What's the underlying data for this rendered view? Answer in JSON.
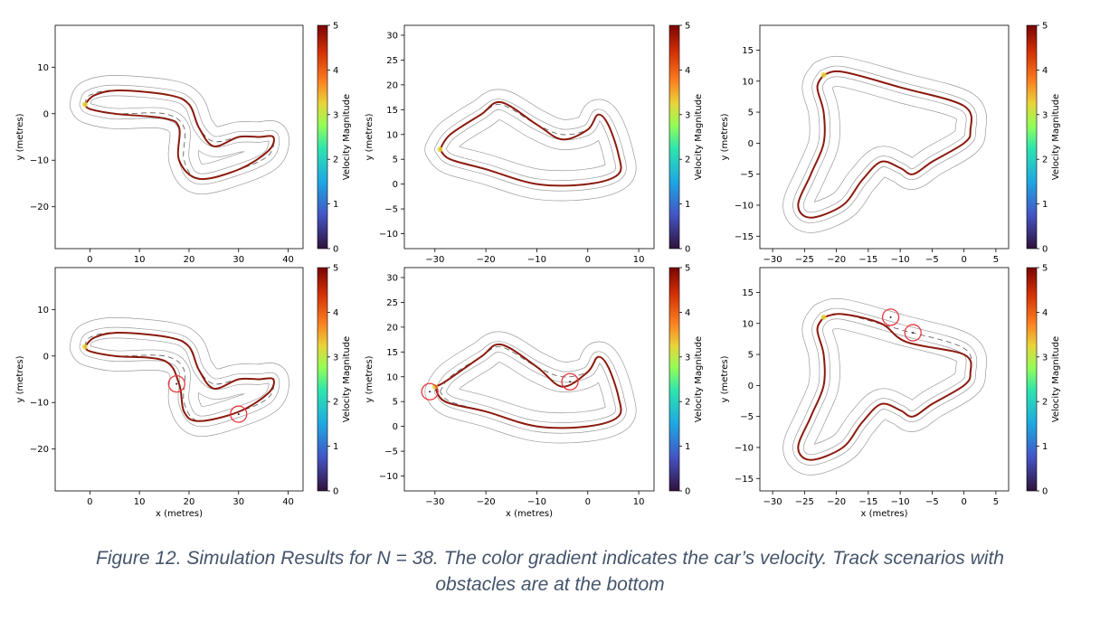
{
  "caption": {
    "line1": "Figure 12. Simulation Results for N = 38. The color gradient indicates the car’s velocity. Track scenarios with",
    "line2": "obstacles are at the bottom"
  },
  "colorbar": {
    "label": "Velocity Magnitude",
    "ticks": [
      0,
      1,
      2,
      3,
      4,
      5
    ]
  },
  "colors": {
    "trajectory": "#8b1a0e",
    "track_line": "#9a9a9a",
    "center_line": "#555555",
    "obstacle": "#e8383d",
    "caption": "#44546a"
  },
  "chart_data": [
    {
      "type": "line",
      "track": "track-1",
      "obstacles": false,
      "xlim": [
        -7,
        43
      ],
      "ylim": [
        -29,
        19
      ],
      "xticks": [
        0,
        10,
        20,
        30,
        40
      ],
      "yticks": [
        10,
        0,
        -10,
        -20
      ],
      "xlabel": "",
      "ylabel": "y (metres)",
      "centerline": [
        [
          -1,
          2
        ],
        [
          0,
          4
        ],
        [
          5,
          5
        ],
        [
          16,
          4
        ],
        [
          20,
          2
        ],
        [
          22,
          -3
        ],
        [
          25,
          -6
        ],
        [
          30,
          -5
        ],
        [
          34,
          -5
        ],
        [
          37,
          -5
        ],
        [
          36,
          -9
        ],
        [
          30,
          -12
        ],
        [
          22,
          -14
        ],
        [
          19,
          -10
        ],
        [
          19,
          -3
        ],
        [
          15,
          0
        ],
        [
          5,
          0
        ],
        [
          0,
          1
        ],
        [
          -1,
          2
        ]
      ],
      "trajectory": [
        [
          -1,
          2
        ],
        [
          1,
          4
        ],
        [
          6,
          5
        ],
        [
          16,
          4
        ],
        [
          20,
          2
        ],
        [
          22,
          -3
        ],
        [
          25,
          -7
        ],
        [
          30,
          -5
        ],
        [
          34,
          -5
        ],
        [
          37,
          -5
        ],
        [
          36,
          -8
        ],
        [
          30,
          -12
        ],
        [
          22,
          -14
        ],
        [
          18,
          -10
        ],
        [
          18,
          -3
        ],
        [
          15,
          -1
        ],
        [
          5,
          0
        ],
        [
          0,
          1
        ],
        [
          -1,
          2
        ]
      ],
      "obstacle_points": []
    },
    {
      "type": "line",
      "track": "track-2",
      "obstacles": false,
      "xlim": [
        -36,
        13
      ],
      "ylim": [
        -13,
        32
      ],
      "xticks": [
        -30,
        -20,
        -10,
        0,
        10
      ],
      "yticks": [
        30,
        25,
        20,
        15,
        10,
        5,
        0,
        -5,
        -10
      ],
      "xlabel": "",
      "ylabel": "y (metres)",
      "centerline": [
        [
          -29,
          7
        ],
        [
          -27,
          10
        ],
        [
          -21,
          14
        ],
        [
          -17,
          16
        ],
        [
          -10,
          12
        ],
        [
          -5,
          10
        ],
        [
          0,
          11
        ],
        [
          2,
          14
        ],
        [
          4,
          12
        ],
        [
          6,
          6
        ],
        [
          6,
          2
        ],
        [
          0,
          0
        ],
        [
          -10,
          0
        ],
        [
          -20,
          3
        ],
        [
          -27,
          5
        ],
        [
          -29,
          7
        ]
      ],
      "trajectory": [
        [
          -29,
          7
        ],
        [
          -27,
          10
        ],
        [
          -21,
          14
        ],
        [
          -17,
          16.5
        ],
        [
          -10,
          12
        ],
        [
          -5,
          9
        ],
        [
          0,
          11
        ],
        [
          2,
          14
        ],
        [
          4,
          12
        ],
        [
          6,
          6
        ],
        [
          6,
          2
        ],
        [
          0,
          0
        ],
        [
          -10,
          0
        ],
        [
          -20,
          3
        ],
        [
          -27,
          5
        ],
        [
          -29,
          7
        ]
      ],
      "obstacle_points": []
    },
    {
      "type": "line",
      "track": "track-3",
      "obstacles": false,
      "xlim": [
        -32,
        7
      ],
      "ylim": [
        -17,
        19
      ],
      "xticks": [
        -30,
        -25,
        -20,
        -15,
        -10,
        -5,
        0,
        5
      ],
      "yticks": [
        15,
        10,
        5,
        0,
        -5,
        -10,
        -15
      ],
      "xlabel": "",
      "ylabel": "y (metres)",
      "centerline": [
        [
          -22,
          11
        ],
        [
          -19,
          11.5
        ],
        [
          -10,
          9
        ],
        [
          0,
          6
        ],
        [
          1,
          2
        ],
        [
          0,
          0
        ],
        [
          -5,
          -3
        ],
        [
          -8,
          -5
        ],
        [
          -10,
          -4
        ],
        [
          -13,
          -3
        ],
        [
          -16,
          -6
        ],
        [
          -19,
          -10
        ],
        [
          -24,
          -12
        ],
        [
          -26,
          -10
        ],
        [
          -24,
          -5
        ],
        [
          -22,
          0
        ],
        [
          -22,
          5
        ],
        [
          -23,
          9
        ],
        [
          -22,
          11
        ]
      ],
      "trajectory": [
        [
          -22,
          11
        ],
        [
          -19,
          11.5
        ],
        [
          -10,
          9
        ],
        [
          0,
          6
        ],
        [
          1,
          2
        ],
        [
          0,
          0
        ],
        [
          -5,
          -3
        ],
        [
          -8,
          -5
        ],
        [
          -10,
          -4
        ],
        [
          -13,
          -3
        ],
        [
          -16,
          -6
        ],
        [
          -19,
          -10
        ],
        [
          -24,
          -12
        ],
        [
          -26,
          -10
        ],
        [
          -24,
          -5
        ],
        [
          -22,
          0
        ],
        [
          -22,
          5
        ],
        [
          -23,
          9
        ],
        [
          -22,
          11
        ]
      ],
      "obstacle_points": []
    },
    {
      "type": "line",
      "track": "track-1",
      "obstacles": true,
      "xlim": [
        -7,
        43
      ],
      "ylim": [
        -29,
        19
      ],
      "xticks": [
        0,
        10,
        20,
        30,
        40
      ],
      "yticks": [
        10,
        0,
        -10,
        -20
      ],
      "xlabel": "x (metres)",
      "ylabel": "y (metres)",
      "centerline": [
        [
          -1,
          2
        ],
        [
          0,
          4
        ],
        [
          5,
          5
        ],
        [
          16,
          4
        ],
        [
          20,
          2
        ],
        [
          22,
          -3
        ],
        [
          25,
          -6
        ],
        [
          30,
          -5
        ],
        [
          34,
          -5
        ],
        [
          37,
          -5
        ],
        [
          36,
          -9
        ],
        [
          30,
          -12
        ],
        [
          22,
          -14
        ],
        [
          19,
          -10
        ],
        [
          19,
          -3
        ],
        [
          15,
          0
        ],
        [
          5,
          0
        ],
        [
          0,
          1
        ],
        [
          -1,
          2
        ]
      ],
      "trajectory": [
        [
          -1,
          2
        ],
        [
          1,
          4
        ],
        [
          6,
          5
        ],
        [
          16,
          4
        ],
        [
          20,
          2
        ],
        [
          22,
          -3
        ],
        [
          25,
          -7
        ],
        [
          30,
          -5
        ],
        [
          34,
          -5
        ],
        [
          37,
          -5
        ],
        [
          36,
          -8
        ],
        [
          30,
          -12
        ],
        [
          22,
          -14
        ],
        [
          19,
          -12
        ],
        [
          18,
          -6
        ],
        [
          15,
          -1
        ],
        [
          5,
          0
        ],
        [
          0,
          1
        ],
        [
          -1,
          2
        ]
      ],
      "obstacle_points": [
        [
          17.5,
          -6
        ],
        [
          30,
          -12.5
        ]
      ]
    },
    {
      "type": "line",
      "track": "track-2",
      "obstacles": true,
      "xlim": [
        -36,
        13
      ],
      "ylim": [
        -13,
        32
      ],
      "xticks": [
        -30,
        -20,
        -10,
        0,
        10
      ],
      "yticks": [
        30,
        25,
        20,
        15,
        10,
        5,
        0,
        -5,
        -10
      ],
      "xlabel": "x (metres)",
      "ylabel": "y (metres)",
      "centerline": [
        [
          -29,
          7
        ],
        [
          -27,
          10
        ],
        [
          -21,
          14
        ],
        [
          -17,
          16
        ],
        [
          -10,
          12
        ],
        [
          -5,
          10
        ],
        [
          0,
          11
        ],
        [
          2,
          14
        ],
        [
          4,
          12
        ],
        [
          6,
          6
        ],
        [
          6,
          2
        ],
        [
          0,
          0
        ],
        [
          -10,
          0
        ],
        [
          -20,
          3
        ],
        [
          -27,
          5
        ],
        [
          -29,
          7
        ]
      ],
      "trajectory": [
        [
          -30,
          8
        ],
        [
          -28,
          9
        ],
        [
          -21,
          14
        ],
        [
          -17,
          16.5
        ],
        [
          -10,
          12
        ],
        [
          -5,
          8
        ],
        [
          0,
          11
        ],
        [
          2,
          14
        ],
        [
          4,
          12
        ],
        [
          6,
          6
        ],
        [
          6,
          2
        ],
        [
          0,
          0
        ],
        [
          -10,
          0
        ],
        [
          -20,
          3
        ],
        [
          -28,
          5
        ],
        [
          -30,
          8
        ]
      ],
      "obstacle_points": [
        [
          -31,
          7
        ],
        [
          -3.5,
          9
        ]
      ]
    },
    {
      "type": "line",
      "track": "track-3",
      "obstacles": true,
      "xlim": [
        -32,
        7
      ],
      "ylim": [
        -17,
        19
      ],
      "xticks": [
        -30,
        -25,
        -20,
        -15,
        -10,
        -5,
        0,
        5
      ],
      "yticks": [
        15,
        10,
        5,
        0,
        -5,
        -10,
        -15
      ],
      "xlabel": "x (metres)",
      "ylabel": "y (metres)",
      "centerline": [
        [
          -22,
          11
        ],
        [
          -19,
          11.5
        ],
        [
          -10,
          9
        ],
        [
          0,
          6
        ],
        [
          1,
          2
        ],
        [
          0,
          0
        ],
        [
          -5,
          -3
        ],
        [
          -8,
          -5
        ],
        [
          -10,
          -4
        ],
        [
          -13,
          -3
        ],
        [
          -16,
          -6
        ],
        [
          -19,
          -10
        ],
        [
          -24,
          -12
        ],
        [
          -26,
          -10
        ],
        [
          -24,
          -5
        ],
        [
          -22,
          0
        ],
        [
          -22,
          5
        ],
        [
          -23,
          9
        ],
        [
          -22,
          11
        ]
      ],
      "trajectory": [
        [
          -22,
          11
        ],
        [
          -19,
          11.5
        ],
        [
          -13,
          10
        ],
        [
          -9,
          7
        ],
        [
          0,
          5
        ],
        [
          1,
          2
        ],
        [
          0,
          0
        ],
        [
          -5,
          -3
        ],
        [
          -8,
          -5
        ],
        [
          -10,
          -4
        ],
        [
          -13,
          -3
        ],
        [
          -16,
          -6
        ],
        [
          -19,
          -10
        ],
        [
          -24,
          -12
        ],
        [
          -26,
          -10
        ],
        [
          -24,
          -5
        ],
        [
          -22,
          0
        ],
        [
          -22,
          5
        ],
        [
          -23,
          9
        ],
        [
          -22,
          11
        ]
      ],
      "obstacle_points": [
        [
          -11.5,
          11
        ],
        [
          -8,
          8.5
        ]
      ]
    }
  ]
}
